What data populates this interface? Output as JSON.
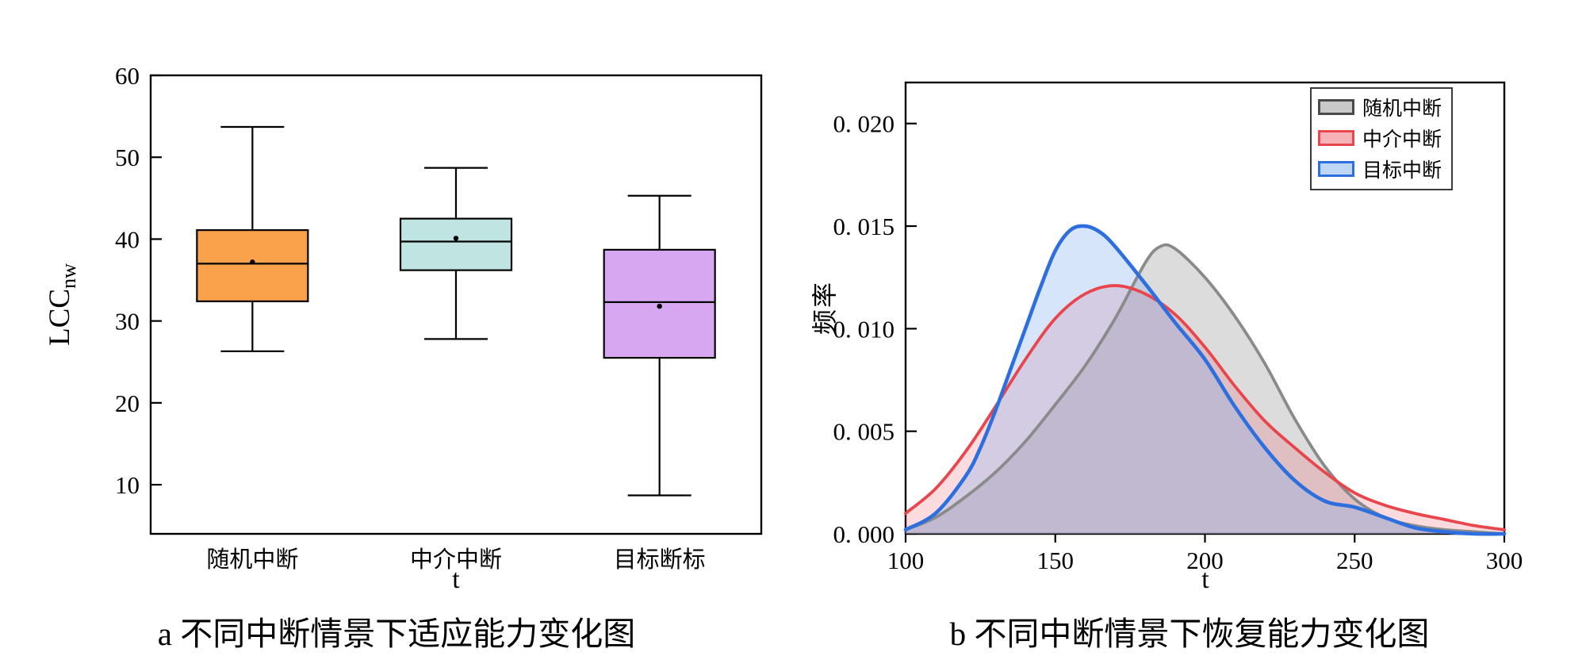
{
  "figures": {
    "a": {
      "caption": "a 不同中断情景下适应能力变化图",
      "xlabel": "t",
      "ylabel_main": "LCC",
      "ylabel_sub": "nw"
    },
    "b": {
      "caption": "b 不同中断情景下恢复能力变化图",
      "xlabel": "t",
      "ylabel": "频率"
    }
  },
  "chart_data": [
    {
      "type": "box",
      "title": "a 不同中断情景下适应能力变化图",
      "xlabel": "t",
      "ylabel": "LCC_nw",
      "ylim": [
        4,
        60
      ],
      "yticks": [
        10,
        20,
        30,
        40,
        50,
        60
      ],
      "ytick_labels": [
        "10",
        "20",
        "30",
        "40",
        "50",
        "60"
      ],
      "categories": [
        "随机中断",
        "中介中断",
        "目标断标"
      ],
      "frame": true,
      "boxes": [
        {
          "label": "随机中断",
          "whisker_low": 26.3,
          "q1": 32.4,
          "median": 37.0,
          "mean": 37.2,
          "q3": 41.1,
          "whisker_high": 53.7,
          "fill": "#F9A24B"
        },
        {
          "label": "中介中断",
          "whisker_low": 27.8,
          "q1": 36.2,
          "median": 39.7,
          "mean": 40.1,
          "q3": 42.5,
          "whisker_high": 48.7,
          "fill": "#BFE4E2"
        },
        {
          "label": "目标断标",
          "whisker_low": 8.7,
          "q1": 25.5,
          "median": 32.3,
          "mean": 31.8,
          "q3": 38.7,
          "whisker_high": 45.3,
          "fill": "#D8A7F2"
        }
      ]
    },
    {
      "type": "area",
      "title": "b 不同中断情景下恢复能力变化图",
      "xlabel": "t",
      "ylabel": "频率",
      "xlim": [
        100,
        300
      ],
      "ylim": [
        0,
        0.022
      ],
      "xticks": [
        100,
        150,
        200,
        250,
        300
      ],
      "xtick_labels": [
        "100",
        "150",
        "200",
        "250",
        "300"
      ],
      "yticks": [
        0,
        0.005,
        0.01,
        0.015,
        0.02
      ],
      "ytick_labels": [
        "0. 000",
        "0. 005",
        "0. 010",
        "0. 015",
        "0. 020"
      ],
      "grid": false,
      "legend_position": "top-right",
      "series": [
        {
          "name": "随机中断",
          "stroke": "#8A8A8A",
          "fill": "rgba(140,140,140,0.30)",
          "legend_fill": "#C9C9C9",
          "legend_stroke": "#4A4A4A",
          "line_width": 3.8,
          "x": [
            100,
            110,
            120,
            130,
            140,
            150,
            160,
            170,
            180,
            185,
            190,
            200,
            210,
            220,
            230,
            240,
            250,
            260,
            270,
            280,
            290,
            300
          ],
          "y": [
            0.0002,
            0.0008,
            0.0018,
            0.003,
            0.0045,
            0.0063,
            0.0082,
            0.0105,
            0.0132,
            0.014,
            0.0139,
            0.0125,
            0.0106,
            0.0083,
            0.0056,
            0.0033,
            0.0017,
            0.0008,
            0.0004,
            0.0002,
            0.0001,
            0.0
          ]
        },
        {
          "name": "中介中断",
          "stroke": "#E8464C",
          "fill": "rgba(235,90,100,0.22)",
          "legend_fill": "#F6B3B7",
          "legend_stroke": "#E8464C",
          "line_width": 3.8,
          "x": [
            100,
            110,
            120,
            130,
            140,
            150,
            160,
            170,
            180,
            190,
            200,
            210,
            220,
            230,
            240,
            250,
            260,
            270,
            280,
            290,
            300
          ],
          "y": [
            0.001,
            0.0022,
            0.004,
            0.0062,
            0.0085,
            0.0105,
            0.0117,
            0.0121,
            0.0117,
            0.0107,
            0.0091,
            0.0072,
            0.0055,
            0.0042,
            0.003,
            0.002,
            0.0014,
            0.001,
            0.0007,
            0.0004,
            0.0002
          ]
        },
        {
          "name": "目标中断",
          "stroke": "#2E6FE0",
          "fill": "rgba(130,175,240,0.32)",
          "legend_fill": "#BDD7F5",
          "legend_stroke": "#2E6FE0",
          "line_width": 4.6,
          "x": [
            100,
            110,
            120,
            125,
            130,
            135,
            140,
            145,
            150,
            155,
            160,
            165,
            170,
            180,
            190,
            200,
            210,
            220,
            230,
            240,
            250,
            260,
            270,
            280,
            290,
            300
          ],
          "y": [
            0.0002,
            0.001,
            0.0028,
            0.0042,
            0.006,
            0.008,
            0.01,
            0.012,
            0.0138,
            0.0148,
            0.015,
            0.0147,
            0.014,
            0.0122,
            0.0103,
            0.0085,
            0.0062,
            0.0042,
            0.0026,
            0.0016,
            0.0013,
            0.0008,
            0.0003,
            0.0001,
            0.0,
            0.0
          ]
        }
      ]
    }
  ]
}
